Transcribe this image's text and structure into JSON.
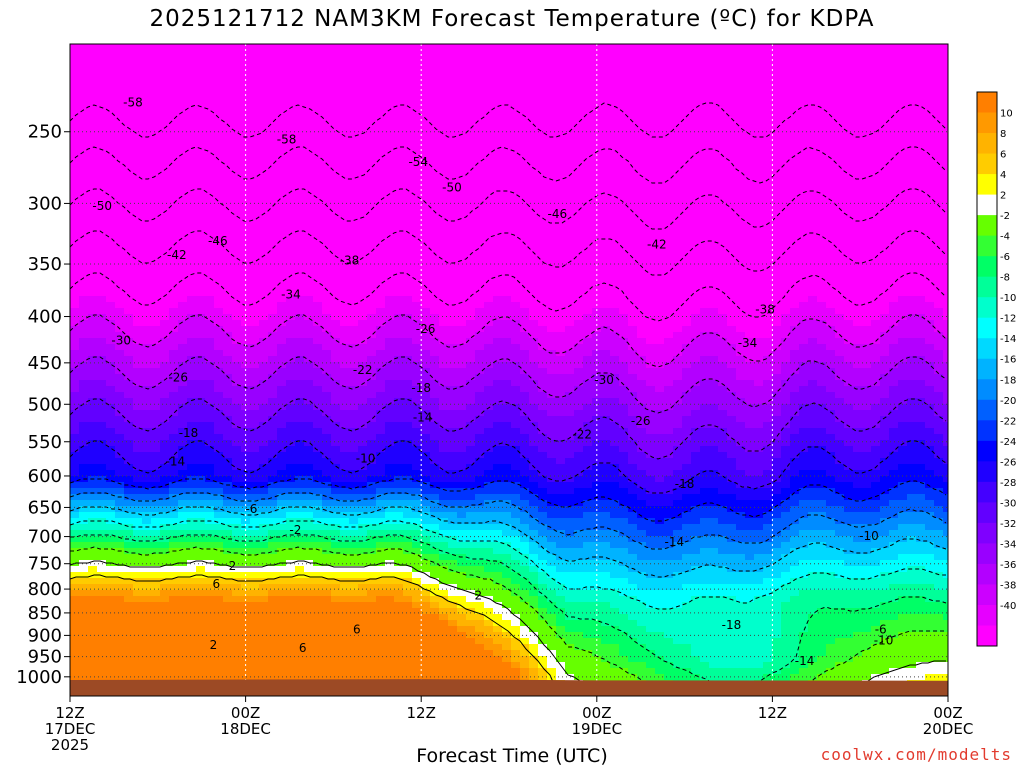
{
  "title": "2025121712 NAM3KM Forecast Temperature (ºC) for KDPA",
  "credit": "coolwx.com/modelts",
  "chart_data": {
    "type": "heatmap",
    "title": "2025121712 NAM3KM Forecast Temperature (ºC) for KDPA",
    "xlabel": "Forecast Time (UTC)",
    "ylabel": "",
    "y_axis": {
      "quantity": "pressure (hPa)",
      "scale": "log",
      "inverted": true,
      "range": [
        1050,
        200
      ],
      "ticks": [
        250,
        300,
        350,
        400,
        450,
        500,
        550,
        600,
        650,
        700,
        750,
        800,
        850,
        900,
        950,
        1000
      ]
    },
    "x_axis": {
      "range_hours": [
        0,
        60
      ],
      "ticks": [
        {
          "hour": 0,
          "lines": [
            "12Z",
            "17DEC",
            "2025"
          ]
        },
        {
          "hour": 12,
          "lines": [
            "00Z",
            "18DEC"
          ]
        },
        {
          "hour": 24,
          "lines": [
            "12Z"
          ]
        },
        {
          "hour": 36,
          "lines": [
            "00Z",
            "19DEC"
          ]
        },
        {
          "hour": 48,
          "lines": [
            "12Z"
          ]
        },
        {
          "hour": 60,
          "lines": [
            "00Z",
            "20DEC"
          ]
        }
      ]
    },
    "grid": true,
    "colorbar": {
      "location": "right",
      "levels": [
        -42,
        -40,
        -38,
        -36,
        -34,
        -32,
        -30,
        -28,
        -26,
        -24,
        -22,
        -20,
        -18,
        -16,
        -14,
        -12,
        -10,
        -8,
        -6,
        -4,
        -2,
        2,
        4,
        6,
        8,
        10,
        12
      ],
      "tick_labels": [
        "10",
        "8",
        "6",
        "4",
        "2",
        "-2",
        "-4",
        "-6",
        "-8",
        "-10",
        "-12",
        "-14",
        "-16",
        "-18",
        "-20",
        "-22",
        "-24",
        "-26",
        "-28",
        "-30",
        "-32",
        "-34",
        "-36",
        "-38",
        "-40"
      ],
      "colors": [
        "#ff00ff",
        "#e600ff",
        "#cc00ff",
        "#b300ff",
        "#9900ff",
        "#7f00ff",
        "#6200ff",
        "#4400ff",
        "#1f00ff",
        "#0000ff",
        "#0033ff",
        "#0060ff",
        "#008cff",
        "#00b3ff",
        "#00d9ff",
        "#00ffff",
        "#00ffcc",
        "#00ff99",
        "#00ff66",
        "#33ff33",
        "#66ff00",
        "#ffffff",
        "#ffff00",
        "#ffcc00",
        "#ffb300",
        "#ff9900",
        "#ff7f00"
      ]
    },
    "ground_color": "#9c4a25",
    "isotherm_labels": [
      {
        "hour": 4.3,
        "p": 232,
        "value": -58
      },
      {
        "hour": 14.8,
        "p": 255,
        "value": -58
      },
      {
        "hour": 23.8,
        "p": 270,
        "value": -54
      },
      {
        "hour": 26.1,
        "p": 288,
        "value": -50
      },
      {
        "hour": 2.2,
        "p": 302,
        "value": -50
      },
      {
        "hour": 33.3,
        "p": 308,
        "value": -46
      },
      {
        "hour": 10.1,
        "p": 330,
        "value": -46
      },
      {
        "hour": 7.3,
        "p": 342,
        "value": -42
      },
      {
        "hour": 19.1,
        "p": 347,
        "value": -38
      },
      {
        "hour": 40.1,
        "p": 333,
        "value": -42
      },
      {
        "hour": 15.1,
        "p": 378,
        "value": -34
      },
      {
        "hour": 47.5,
        "p": 393,
        "value": -38
      },
      {
        "hour": 3.5,
        "p": 425,
        "value": -30
      },
      {
        "hour": 46.3,
        "p": 428,
        "value": -34
      },
      {
        "hour": 24.3,
        "p": 413,
        "value": -26
      },
      {
        "hour": 7.4,
        "p": 467,
        "value": -26
      },
      {
        "hour": 20.0,
        "p": 458,
        "value": -22
      },
      {
        "hour": 36.5,
        "p": 470,
        "value": -30
      },
      {
        "hour": 24.0,
        "p": 480,
        "value": -18
      },
      {
        "hour": 39.0,
        "p": 522,
        "value": -26
      },
      {
        "hour": 24.1,
        "p": 517,
        "value": -14
      },
      {
        "hour": 8.1,
        "p": 538,
        "value": -18
      },
      {
        "hour": 35.0,
        "p": 540,
        "value": -22
      },
      {
        "hour": 7.2,
        "p": 578,
        "value": -14
      },
      {
        "hour": 20.2,
        "p": 574,
        "value": -10
      },
      {
        "hour": 42.0,
        "p": 612,
        "value": -18
      },
      {
        "hour": 12.4,
        "p": 653,
        "value": -6
      },
      {
        "hour": 15.4,
        "p": 688,
        "value": -2
      },
      {
        "hour": 41.3,
        "p": 710,
        "value": -14
      },
      {
        "hour": 54.6,
        "p": 699,
        "value": -10
      },
      {
        "hour": 11.1,
        "p": 754,
        "value": 2
      },
      {
        "hour": 10.0,
        "p": 790,
        "value": 6
      },
      {
        "hour": 27.9,
        "p": 813,
        "value": 2
      },
      {
        "hour": 19.6,
        "p": 887,
        "value": 6
      },
      {
        "hour": 45.2,
        "p": 877,
        "value": -18
      },
      {
        "hour": 55.4,
        "p": 887,
        "value": -6
      },
      {
        "hour": 55.6,
        "p": 912,
        "value": -10
      },
      {
        "hour": 9.8,
        "p": 922,
        "value": 2
      },
      {
        "hour": 15.9,
        "p": 929,
        "value": 6
      },
      {
        "hour": 50.2,
        "p": 961,
        "value": -14
      }
    ]
  }
}
